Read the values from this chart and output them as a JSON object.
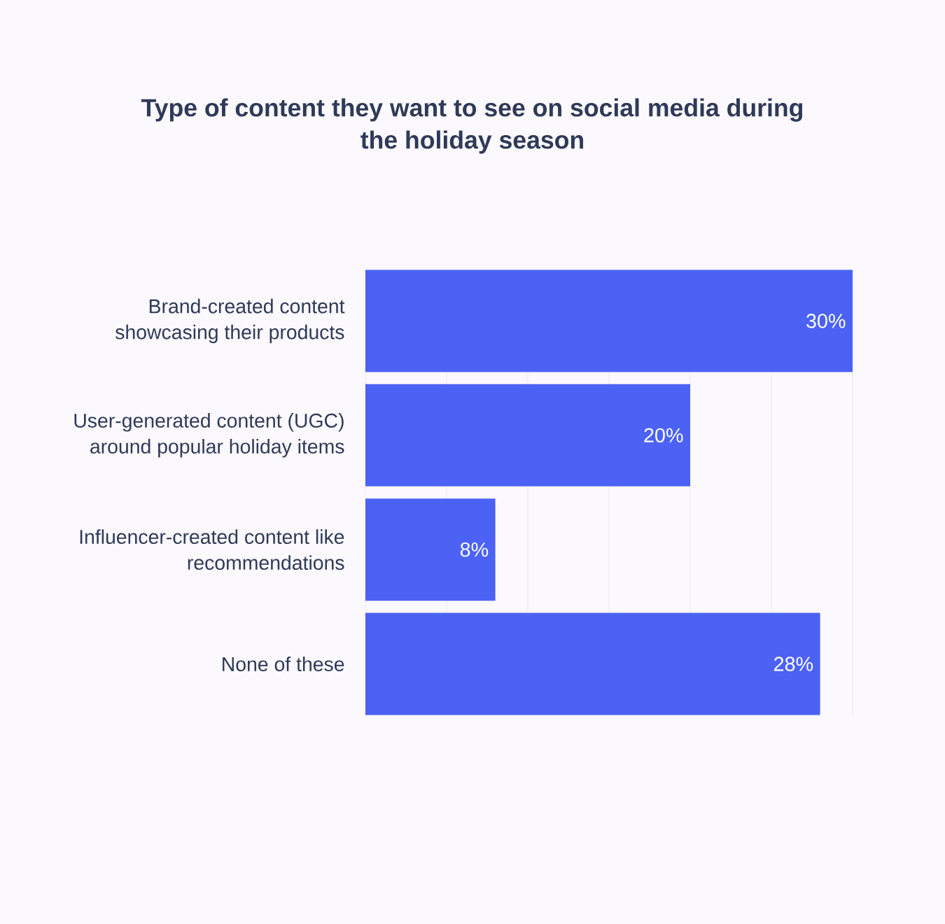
{
  "chart_data": {
    "type": "bar",
    "orientation": "horizontal",
    "title": "Type of content they want to see on social media during the holiday season",
    "categories": [
      "Brand-created content showcasing their products",
      "User-generated content (UGC) around popular holiday items",
      "Influencer-created content like recommendations",
      "None of these"
    ],
    "values": [
      30,
      20,
      8,
      28
    ],
    "value_labels": [
      "30%",
      "20%",
      "8%",
      "28%"
    ],
    "color": "#4c62f5",
    "xlim": [
      0,
      30
    ],
    "xticks": [
      {
        "value": 0,
        "label": null
      },
      {
        "value": 5,
        "label": null
      },
      {
        "value": 10,
        "label": null
      },
      {
        "value": 15,
        "label": null
      },
      {
        "value": 20,
        "label": null
      },
      {
        "value": 25,
        "label": null
      },
      {
        "value": 30,
        "label": null
      }
    ],
    "grid": "x",
    "tick_labels": "y"
  }
}
